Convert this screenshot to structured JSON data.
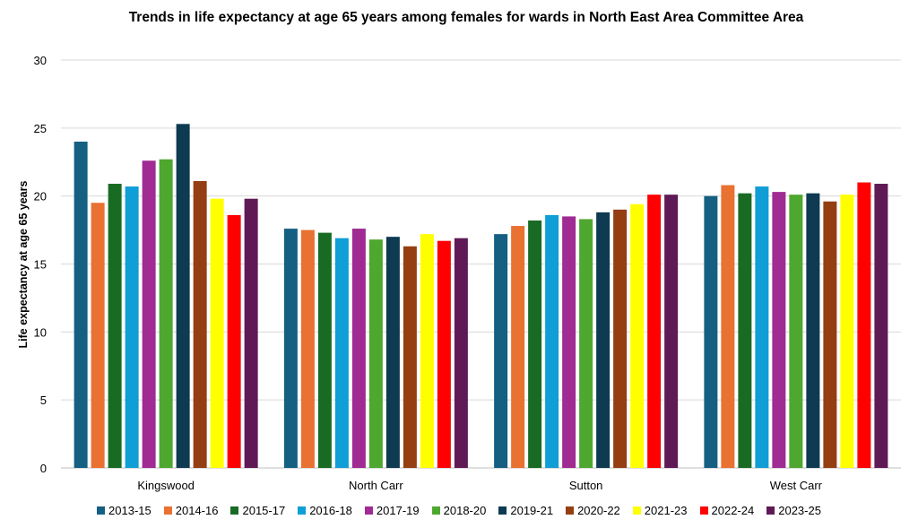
{
  "chart_data": {
    "type": "bar",
    "title": "Trends in life expectancy at  age 65 years among females for wards in North East Area Committee Area",
    "ylabel": "Life expectancy at  age 65 years",
    "xlabel": "",
    "ylim": [
      0,
      30
    ],
    "yticks": [
      0,
      5,
      10,
      15,
      20,
      25,
      30
    ],
    "grid": true,
    "legend": "bottom",
    "categories": [
      "Kingswood",
      "North Carr",
      "Sutton",
      "West Carr"
    ],
    "series": [
      {
        "name": "2013-15",
        "color": "#156082",
        "values": [
          24.0,
          17.6,
          17.2,
          20.0
        ]
      },
      {
        "name": "2014-16",
        "color": "#e97132",
        "values": [
          19.5,
          17.5,
          17.8,
          20.8
        ]
      },
      {
        "name": "2015-17",
        "color": "#196b24",
        "values": [
          20.9,
          17.3,
          18.2,
          20.2
        ]
      },
      {
        "name": "2016-18",
        "color": "#0f9ed5",
        "values": [
          20.7,
          16.9,
          18.6,
          20.7
        ]
      },
      {
        "name": "2017-19",
        "color": "#a02b93",
        "values": [
          22.6,
          17.6,
          18.5,
          20.3
        ]
      },
      {
        "name": "2018-20",
        "color": "#4ea72e",
        "values": [
          22.7,
          16.8,
          18.3,
          20.1
        ]
      },
      {
        "name": "2019-21",
        "color": "#0e3a52",
        "values": [
          25.3,
          17.0,
          18.8,
          20.2
        ]
      },
      {
        "name": "2020-22",
        "color": "#953e12",
        "values": [
          21.1,
          16.3,
          19.0,
          19.6
        ]
      },
      {
        "name": "2021-23",
        "color": "#ffff00",
        "values": [
          19.8,
          17.2,
          19.4,
          20.1
        ]
      },
      {
        "name": "2022-24",
        "color": "#ff0000",
        "values": [
          18.6,
          16.7,
          20.1,
          21.0
        ]
      },
      {
        "name": "2023-25",
        "color": "#5f1a55",
        "values": [
          19.8,
          16.9,
          20.1,
          20.9
        ]
      }
    ]
  }
}
